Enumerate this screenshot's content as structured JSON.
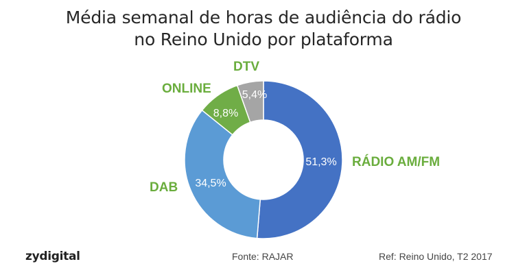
{
  "header": {
    "title_line1": "Média semanal de horas de audiência do rádio",
    "title_line2": "no Reino Unido por plataforma"
  },
  "footer": {
    "logo": "zydigital",
    "source": "Fonte: RAJAR",
    "reference": "Ref: Reino Unido, T2 2017"
  },
  "chart_data": {
    "type": "pie",
    "variant": "donut",
    "title": "Média semanal de horas de audiência do rádio no Reino Unido por plataforma",
    "categories": [
      "RÁDIO AM/FM",
      "DAB",
      "ONLINE",
      "DTV"
    ],
    "values": [
      51.3,
      34.5,
      8.8,
      5.4
    ],
    "value_labels": [
      "51,3%",
      "34,5%",
      "8,8%",
      "5,4%"
    ],
    "unit": "%",
    "colors": [
      "#4472C4",
      "#5B9BD5",
      "#70AD47",
      "#A5A5A5"
    ],
    "label_color": "#6AAD3D",
    "start_angle_deg": 0,
    "direction": "clockwise",
    "legend": "none (category labels placed outside slices)",
    "source": "RAJAR",
    "reference": "Reino Unido, T2 2017"
  },
  "labels": {
    "radio": "RÁDIO AM/FM",
    "dab": "DAB",
    "online": "ONLINE",
    "dtv": "DTV"
  }
}
